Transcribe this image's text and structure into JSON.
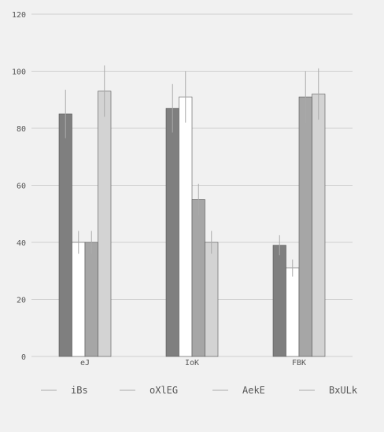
{
  "chart_data": {
    "type": "bar",
    "title": "",
    "xlabel": "",
    "ylabel": "",
    "categories": [
      "eJ",
      "IoK",
      "FBK"
    ],
    "ylim": [
      0,
      120
    ],
    "yticks": [
      0,
      20,
      40,
      60,
      80,
      100,
      120
    ],
    "grid": "horizontal",
    "legend_position": "bottom",
    "error_bars": true,
    "series": [
      {
        "name": "iBs",
        "color": "#7f7f7f",
        "values": [
          85,
          87,
          39
        ],
        "errors": [
          8.5,
          8.5,
          3.5
        ]
      },
      {
        "name": "oXlEG",
        "color": "#ffffff",
        "values": [
          40,
          91,
          31
        ],
        "errors": [
          4,
          9,
          3
        ]
      },
      {
        "name": "AekE",
        "color": "#a6a6a6",
        "values": [
          40,
          55,
          91
        ],
        "errors": [
          4,
          5.5,
          9
        ]
      },
      {
        "name": "BxULk",
        "color": "#d3d3d3",
        "values": [
          93,
          40,
          92
        ],
        "errors": [
          9,
          4,
          9
        ]
      }
    ]
  }
}
